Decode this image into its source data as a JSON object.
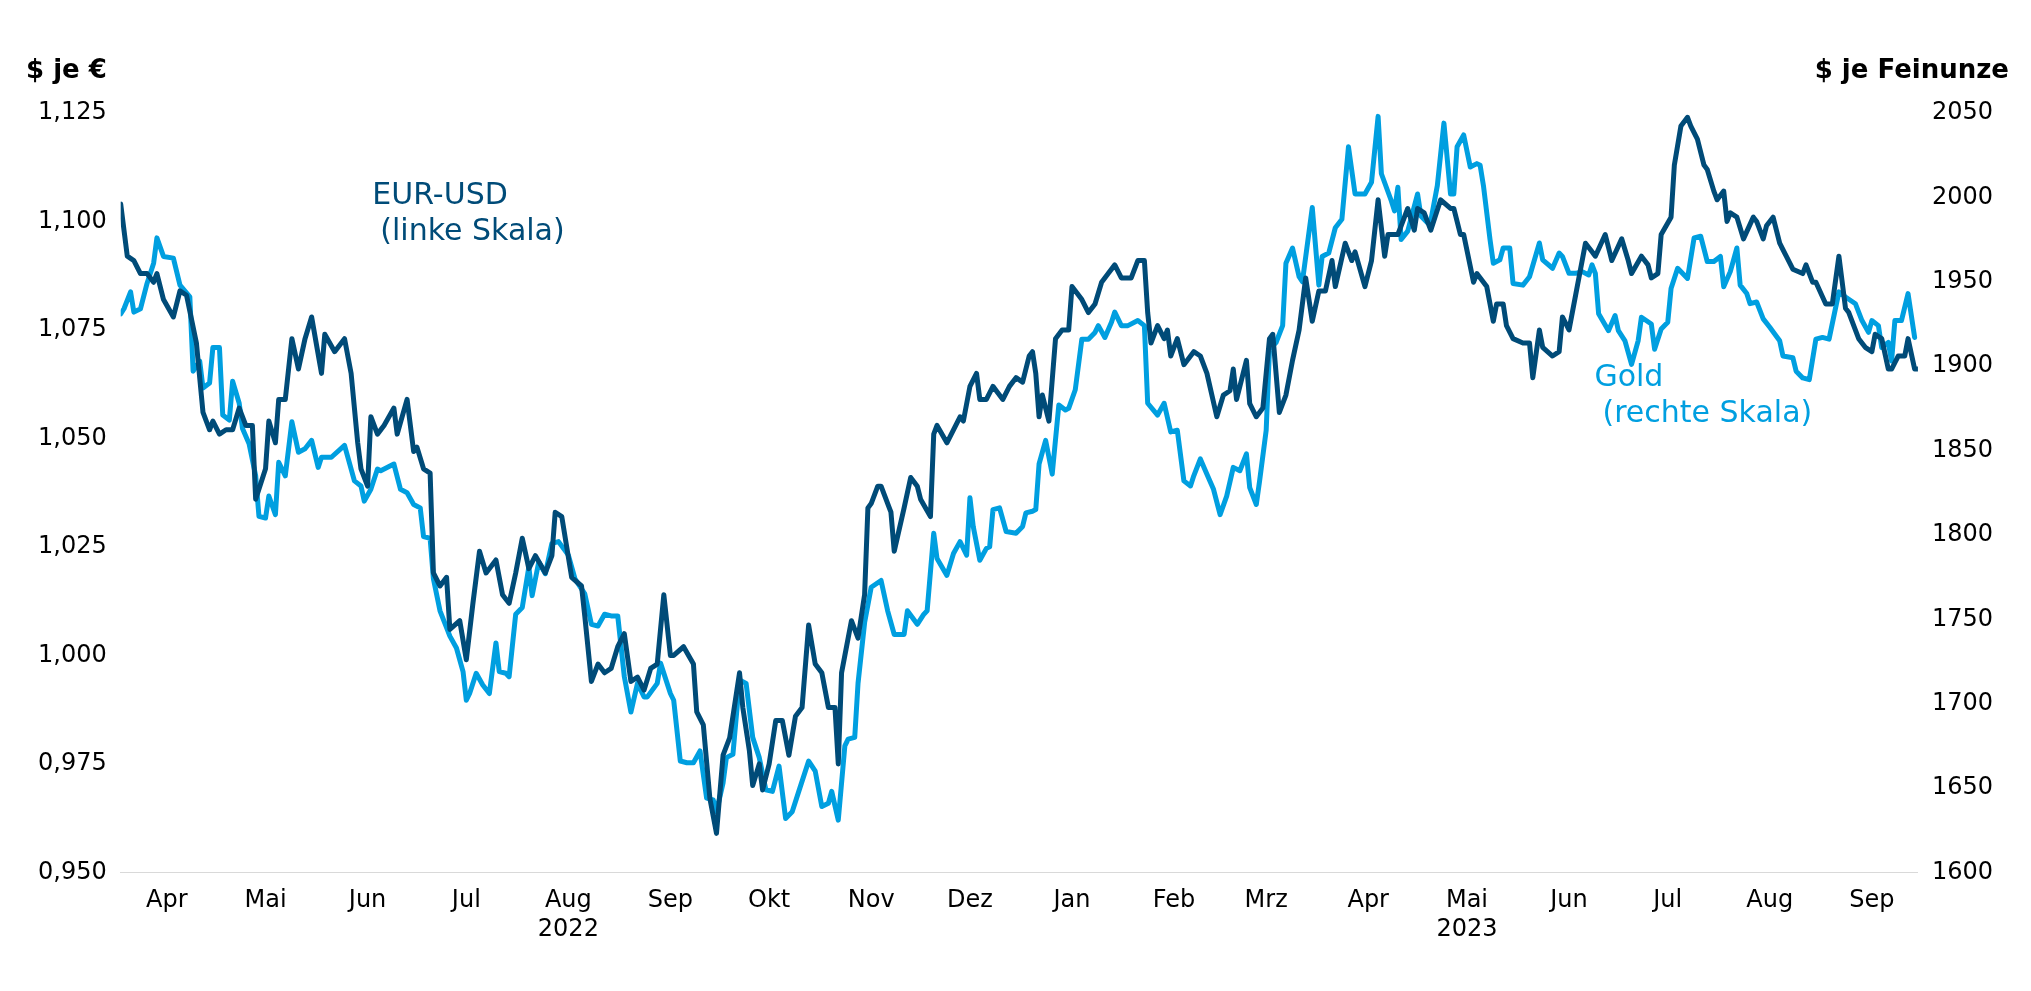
{
  "chart_data": {
    "type": "line",
    "ylabel": "$ je €",
    "y2label": "$ je Feinunze",
    "xlim": [
      "2022-04-01",
      "2023-09-29"
    ],
    "xticks": [
      {
        "value": "2022-04-15",
        "label": "Apr"
      },
      {
        "value": "2022-05-15",
        "label": "Mai"
      },
      {
        "value": "2022-06-15",
        "label": "Jun"
      },
      {
        "value": "2022-07-15",
        "label": "Jul"
      },
      {
        "value": "2022-08-15",
        "label": "Aug\n2022"
      },
      {
        "value": "2022-09-15",
        "label": "Sep"
      },
      {
        "value": "2022-10-15",
        "label": "Okt"
      },
      {
        "value": "2022-11-15",
        "label": "Nov"
      },
      {
        "value": "2022-12-15",
        "label": "Dez"
      },
      {
        "value": "2023-01-15",
        "label": "Jan"
      },
      {
        "value": "2023-02-15",
        "label": "Feb"
      },
      {
        "value": "2023-03-15",
        "label": "Mrz"
      },
      {
        "value": "2023-04-15",
        "label": "Apr"
      },
      {
        "value": "2023-05-15",
        "label": "Mai\n2023"
      },
      {
        "value": "2023-06-15",
        "label": "Jun"
      },
      {
        "value": "2023-07-15",
        "label": "Jul"
      },
      {
        "value": "2023-08-15",
        "label": "Aug"
      },
      {
        "value": "2023-09-15",
        "label": "Sep"
      }
    ],
    "ylim": [
      0.95,
      1.125
    ],
    "yticks": [
      {
        "value": 0.95,
        "label": "0,950"
      },
      {
        "value": 0.975,
        "label": "0,975"
      },
      {
        "value": 1.0,
        "label": "1,000"
      },
      {
        "value": 1.025,
        "label": "1,025"
      },
      {
        "value": 1.05,
        "label": "1,050"
      },
      {
        "value": 1.075,
        "label": "1,075"
      },
      {
        "value": 1.1,
        "label": "1,100"
      },
      {
        "value": 1.125,
        "label": "1,125"
      }
    ],
    "y2lim": [
      1600,
      2050
    ],
    "y2ticks": [
      1600,
      1650,
      1700,
      1750,
      1800,
      1850,
      1900,
      1950,
      2000,
      2050
    ],
    "series": [
      {
        "name": "EUR-USD (linke Skala)",
        "color": "#004b78",
        "axis": "y",
        "x": [
          "2022-04-01",
          "2022-04-03",
          "2022-04-05",
          "2022-04-07",
          "2022-04-09",
          "2022-04-11",
          "2022-04-12",
          "2022-04-14",
          "2022-04-17",
          "2022-04-19",
          "2022-04-21",
          "2022-04-24",
          "2022-04-26",
          "2022-04-28",
          "2022-04-29",
          "2022-05-01",
          "2022-05-03",
          "2022-05-05",
          "2022-05-07",
          "2022-05-09",
          "2022-05-11",
          "2022-05-12",
          "2022-05-15",
          "2022-05-16",
          "2022-05-18",
          "2022-05-19",
          "2022-05-21",
          "2022-05-23",
          "2022-05-25",
          "2022-05-27",
          "2022-05-29",
          "2022-06-01",
          "2022-06-02",
          "2022-06-05",
          "2022-06-08",
          "2022-06-10",
          "2022-06-12",
          "2022-06-13",
          "2022-06-15",
          "2022-06-16",
          "2022-06-18",
          "2022-06-20",
          "2022-06-23",
          "2022-06-24",
          "2022-06-27",
          "2022-06-29",
          "2022-06-30",
          "2022-07-02",
          "2022-07-04",
          "2022-07-05",
          "2022-07-07",
          "2022-07-09",
          "2022-07-10",
          "2022-07-13",
          "2022-07-15",
          "2022-07-17",
          "2022-07-19",
          "2022-07-21",
          "2022-07-24",
          "2022-07-26",
          "2022-07-28",
          "2022-07-30",
          "2022-08-01",
          "2022-08-03",
          "2022-08-05",
          "2022-08-08",
          "2022-08-10",
          "2022-08-11",
          "2022-08-13",
          "2022-08-16",
          "2022-08-19",
          "2022-08-20",
          "2022-08-22",
          "2022-08-24",
          "2022-08-26",
          "2022-08-28",
          "2022-08-30",
          "2022-09-01",
          "2022-09-03",
          "2022-09-05",
          "2022-09-07",
          "2022-09-09",
          "2022-09-11",
          "2022-09-13",
          "2022-09-15",
          "2022-09-16",
          "2022-09-19",
          "2022-09-22",
          "2022-09-23",
          "2022-09-25",
          "2022-09-27",
          "2022-09-29",
          "2022-10-01",
          "2022-10-03",
          "2022-10-06",
          "2022-10-07",
          "2022-10-09",
          "2022-10-10",
          "2022-10-12",
          "2022-10-13",
          "2022-10-15",
          "2022-10-17",
          "2022-10-19",
          "2022-10-21",
          "2022-10-23",
          "2022-10-25",
          "2022-10-27",
          "2022-10-29",
          "2022-10-31",
          "2022-11-02",
          "2022-11-04",
          "2022-11-05",
          "2022-11-06",
          "2022-11-09",
          "2022-11-11",
          "2022-11-13",
          "2022-11-14",
          "2022-11-15",
          "2022-11-17",
          "2022-11-18",
          "2022-11-21",
          "2022-11-22",
          "2022-11-25",
          "2022-11-27",
          "2022-11-29",
          "2022-11-30",
          "2022-12-03",
          "2022-12-04",
          "2022-12-05",
          "2022-12-08",
          "2022-12-10",
          "2022-12-12",
          "2022-12-13",
          "2022-12-15",
          "2022-12-17",
          "2022-12-18",
          "2022-12-20",
          "2022-12-22",
          "2022-12-23",
          "2022-12-25",
          "2022-12-27",
          "2022-12-29",
          "2022-12-31",
          "2023-01-02",
          "2023-01-03",
          "2023-01-04",
          "2023-01-05",
          "2023-01-06",
          "2023-01-08",
          "2023-01-10",
          "2023-01-12",
          "2023-01-14",
          "2023-01-15",
          "2023-01-18",
          "2023-01-20",
          "2023-01-22",
          "2023-01-24",
          "2023-01-26",
          "2023-01-28",
          "2023-01-30",
          "2023-02-01",
          "2023-02-02",
          "2023-02-04",
          "2023-02-06",
          "2023-02-07",
          "2023-02-08",
          "2023-02-10",
          "2023-02-12",
          "2023-02-13",
          "2023-02-14",
          "2023-02-16",
          "2023-02-18",
          "2023-02-21",
          "2023-02-23",
          "2023-02-25",
          "2023-02-28",
          "2023-03-02",
          "2023-03-04",
          "2023-03-05",
          "2023-03-06",
          "2023-03-09",
          "2023-03-10",
          "2023-03-12",
          "2023-03-14",
          "2023-03-16",
          "2023-03-17",
          "2023-03-19",
          "2023-03-21",
          "2023-03-23",
          "2023-03-25",
          "2023-03-27",
          "2023-03-29",
          "2023-03-31",
          "2023-04-02",
          "2023-04-04",
          "2023-04-05",
          "2023-04-08",
          "2023-04-10",
          "2023-04-11",
          "2023-04-14",
          "2023-04-16",
          "2023-04-18",
          "2023-04-20",
          "2023-04-21",
          "2023-04-24",
          "2023-04-25",
          "2023-04-27",
          "2023-04-29",
          "2023-04-30",
          "2023-05-02",
          "2023-05-04",
          "2023-05-07",
          "2023-05-10",
          "2023-05-11",
          "2023-05-13",
          "2023-05-14",
          "2023-05-17",
          "2023-05-18",
          "2023-05-21",
          "2023-05-23",
          "2023-05-24",
          "2023-05-26",
          "2023-05-27",
          "2023-05-29",
          "2023-06-01",
          "2023-06-03",
          "2023-06-04",
          "2023-06-06",
          "2023-06-07",
          "2023-06-10",
          "2023-06-12",
          "2023-06-13",
          "2023-06-15",
          "2023-06-17",
          "2023-06-20",
          "2023-06-22",
          "2023-06-23",
          "2023-06-26",
          "2023-06-28",
          "2023-07-01",
          "2023-07-03",
          "2023-07-04",
          "2023-07-07",
          "2023-07-09",
          "2023-07-10",
          "2023-07-12",
          "2023-07-13",
          "2023-07-16",
          "2023-07-17",
          "2023-07-19",
          "2023-07-21",
          "2023-07-22",
          "2023-07-24",
          "2023-07-26",
          "2023-07-27",
          "2023-07-29",
          "2023-07-30",
          "2023-08-01",
          "2023-08-02",
          "2023-08-03",
          "2023-08-05",
          "2023-08-07",
          "2023-08-10",
          "2023-08-11",
          "2023-08-13",
          "2023-08-14",
          "2023-08-16",
          "2023-08-18",
          "2023-08-20",
          "2023-08-22",
          "2023-08-25",
          "2023-08-26",
          "2023-08-28",
          "2023-08-29",
          "2023-09-01",
          "2023-09-03",
          "2023-09-05",
          "2023-09-07",
          "2023-09-08",
          "2023-09-11",
          "2023-09-13",
          "2023-09-15",
          "2023-09-16",
          "2023-09-18",
          "2023-09-20",
          "2023-09-21",
          "2023-09-23",
          "2023-09-25",
          "2023-09-26",
          "2023-09-28",
          "2023-09-29"
        ],
        "values": [
          1.104,
          1.092,
          1.091,
          1.088,
          1.088,
          1.086,
          1.088,
          1.082,
          1.078,
          1.084,
          1.083,
          1.072,
          1.056,
          1.052,
          1.054,
          1.051,
          1.052,
          1.052,
          1.057,
          1.053,
          1.053,
          1.036,
          1.043,
          1.054,
          1.049,
          1.059,
          1.059,
          1.073,
          1.066,
          1.073,
          1.078,
          1.065,
          1.074,
          1.07,
          1.073,
          1.065,
          1.049,
          1.043,
          1.039,
          1.055,
          1.051,
          1.053,
          1.057,
          1.051,
          1.059,
          1.047,
          1.048,
          1.043,
          1.042,
          1.019,
          1.016,
          1.018,
          1.006,
          1.008,
          0.999,
          1.012,
          1.024,
          1.019,
          1.022,
          1.014,
          1.012,
          1.019,
          1.027,
          1.02,
          1.023,
          1.019,
          1.023,
          1.033,
          1.032,
          1.018,
          1.016,
          1.009,
          0.994,
          0.998,
          0.996,
          0.997,
          1.002,
          1.005,
          0.994,
          0.995,
          0.992,
          0.997,
          0.998,
          1.014,
          1.0,
          1.0,
          1.002,
          0.998,
          0.987,
          0.984,
          0.967,
          0.959,
          0.977,
          0.981,
          0.996,
          0.988,
          0.978,
          0.97,
          0.975,
          0.969,
          0.975,
          0.985,
          0.985,
          0.977,
          0.986,
          0.988,
          1.007,
          0.998,
          0.996,
          0.988,
          0.988,
          0.975,
          0.996,
          1.008,
          1.004,
          1.014,
          1.034,
          1.035,
          1.039,
          1.039,
          1.033,
          1.024,
          1.034,
          1.041,
          1.039,
          1.036,
          1.032,
          1.051,
          1.053,
          1.049,
          1.052,
          1.055,
          1.054,
          1.062,
          1.065,
          1.059,
          1.059,
          1.062,
          1.061,
          1.059,
          1.062,
          1.064,
          1.063,
          1.069,
          1.07,
          1.065,
          1.055,
          1.06,
          1.054,
          1.073,
          1.075,
          1.075,
          1.085,
          1.082,
          1.079,
          1.081,
          1.086,
          1.088,
          1.09,
          1.087,
          1.087,
          1.087,
          1.091,
          1.091,
          1.079,
          1.072,
          1.076,
          1.073,
          1.075,
          1.069,
          1.073,
          1.067,
          1.07,
          1.069,
          1.065,
          1.055,
          1.06,
          1.061,
          1.066,
          1.059,
          1.068,
          1.058,
          1.055,
          1.057,
          1.073,
          1.074,
          1.056,
          1.06,
          1.068,
          1.075,
          1.087,
          1.077,
          1.084,
          1.084,
          1.091,
          1.085,
          1.095,
          1.091,
          1.093,
          1.085,
          1.091,
          1.105,
          1.092,
          1.097,
          1.097,
          1.099,
          1.103,
          1.098,
          1.103,
          1.102,
          1.098,
          1.105,
          1.103,
          1.103,
          1.097,
          1.097,
          1.086,
          1.088,
          1.085,
          1.077,
          1.081,
          1.081,
          1.076,
          1.073,
          1.072,
          1.072,
          1.064,
          1.075,
          1.071,
          1.069,
          1.07,
          1.078,
          1.075,
          1.083,
          1.095,
          1.093,
          1.092,
          1.097,
          1.091,
          1.096,
          1.091,
          1.088,
          1.092,
          1.09,
          1.087,
          1.088,
          1.097,
          1.101,
          1.113,
          1.122,
          1.124,
          1.122,
          1.119,
          1.113,
          1.112,
          1.107,
          1.105,
          1.107,
          1.1,
          1.102,
          1.101,
          1.096,
          1.101,
          1.1,
          1.096,
          1.099,
          1.101,
          1.095,
          1.092,
          1.089,
          1.088,
          1.09,
          1.086,
          1.086,
          1.081,
          1.081,
          1.092,
          1.08,
          1.079,
          1.073,
          1.071,
          1.07,
          1.074,
          1.073,
          1.066,
          1.066,
          1.069,
          1.069,
          1.073,
          1.066,
          1.066
        ]
      },
      {
        "name": "Gold (rechte Skala)",
        "color": "#009fe0",
        "axis": "y2",
        "x": [
          "2022-04-01",
          "2022-04-02",
          "2022-04-04",
          "2022-04-05",
          "2022-04-07",
          "2022-04-09",
          "2022-04-11",
          "2022-04-12",
          "2022-04-14",
          "2022-04-17",
          "2022-04-19",
          "2022-04-22",
          "2022-04-23",
          "2022-04-25",
          "2022-04-26",
          "2022-04-28",
          "2022-04-29",
          "2022-05-01",
          "2022-05-02",
          "2022-05-04",
          "2022-05-05",
          "2022-05-07",
          "2022-05-08",
          "2022-05-10",
          "2022-05-12",
          "2022-05-13",
          "2022-05-15",
          "2022-05-16",
          "2022-05-18",
          "2022-05-19",
          "2022-05-21",
          "2022-05-23",
          "2022-05-25",
          "2022-05-27",
          "2022-05-29",
          "2022-05-31",
          "2022-06-01",
          "2022-06-04",
          "2022-06-08",
          "2022-06-11",
          "2022-06-13",
          "2022-06-14",
          "2022-06-16",
          "2022-06-18",
          "2022-06-19",
          "2022-06-23",
          "2022-06-25",
          "2022-06-27",
          "2022-06-29",
          "2022-07-01",
          "2022-07-02",
          "2022-07-04",
          "2022-07-05",
          "2022-07-07",
          "2022-07-09",
          "2022-07-10",
          "2022-07-12",
          "2022-07-14",
          "2022-07-15",
          "2022-07-16",
          "2022-07-18",
          "2022-07-20",
          "2022-07-22",
          "2022-07-24",
          "2022-07-25",
          "2022-07-27",
          "2022-07-28",
          "2022-07-30",
          "2022-08-01",
          "2022-08-03",
          "2022-08-04",
          "2022-08-06",
          "2022-08-08",
          "2022-08-10",
          "2022-08-12",
          "2022-08-15",
          "2022-08-17",
          "2022-08-20",
          "2022-08-22",
          "2022-08-24",
          "2022-08-26",
          "2022-08-28",
          "2022-08-30",
          "2022-09-01",
          "2022-09-03",
          "2022-09-05",
          "2022-09-07",
          "2022-09-08",
          "2022-09-11",
          "2022-09-12",
          "2022-09-15",
          "2022-09-16",
          "2022-09-18",
          "2022-09-20",
          "2022-09-22",
          "2022-09-24",
          "2022-09-26",
          "2022-09-28",
          "2022-09-29",
          "2022-10-01",
          "2022-10-02",
          "2022-10-04",
          "2022-10-06",
          "2022-10-08",
          "2022-10-10",
          "2022-10-12",
          "2022-10-14",
          "2022-10-16",
          "2022-10-18",
          "2022-10-20",
          "2022-10-22",
          "2022-10-24",
          "2022-10-27",
          "2022-10-29",
          "2022-10-31",
          "2022-11-02",
          "2022-11-03",
          "2022-11-05",
          "2022-11-07",
          "2022-11-08",
          "2022-11-10",
          "2022-11-11",
          "2022-11-13",
          "2022-11-15",
          "2022-11-18",
          "2022-11-20",
          "2022-11-22",
          "2022-11-25",
          "2022-11-26",
          "2022-11-29",
          "2022-12-01",
          "2022-12-02",
          "2022-12-04",
          "2022-12-05",
          "2022-12-08",
          "2022-12-10",
          "2022-12-12",
          "2022-12-14",
          "2022-12-15",
          "2022-12-16",
          "2022-12-18",
          "2022-12-20",
          "2022-12-21",
          "2022-12-22",
          "2022-12-24",
          "2022-12-26",
          "2022-12-29",
          "2022-12-31",
          "2023-01-01",
          "2023-01-03",
          "2023-01-04",
          "2023-01-05",
          "2023-01-07",
          "2023-01-09",
          "2023-01-11",
          "2023-01-13",
          "2023-01-14",
          "2023-01-16",
          "2023-01-18",
          "2023-01-20",
          "2023-01-22",
          "2023-01-23",
          "2023-01-25",
          "2023-01-27",
          "2023-01-28",
          "2023-01-30",
          "2023-02-01",
          "2023-02-04",
          "2023-02-06",
          "2023-02-07",
          "2023-02-10",
          "2023-02-12",
          "2023-02-14",
          "2023-02-16",
          "2023-02-18",
          "2023-02-20",
          "2023-02-21",
          "2023-02-23",
          "2023-02-25",
          "2023-02-27",
          "2023-03-01",
          "2023-03-03",
          "2023-03-05",
          "2023-03-07",
          "2023-03-09",
          "2023-03-10",
          "2023-03-12",
          "2023-03-13",
          "2023-03-15",
          "2023-03-16",
          "2023-03-18",
          "2023-03-20",
          "2023-03-21",
          "2023-03-23",
          "2023-03-25",
          "2023-03-26",
          "2023-03-29",
          "2023-03-31",
          "2023-04-01",
          "2023-04-03",
          "2023-04-05",
          "2023-04-07",
          "2023-04-09",
          "2023-04-11",
          "2023-04-14",
          "2023-04-16",
          "2023-04-18",
          "2023-04-19",
          "2023-04-22",
          "2023-04-23",
          "2023-04-24",
          "2023-04-25",
          "2023-04-27",
          "2023-04-30",
          "2023-05-01",
          "2023-05-03",
          "2023-05-04",
          "2023-05-06",
          "2023-05-08",
          "2023-05-10",
          "2023-05-11",
          "2023-05-12",
          "2023-05-14",
          "2023-05-16",
          "2023-05-18",
          "2023-05-19",
          "2023-05-20",
          "2023-05-22",
          "2023-05-23",
          "2023-05-25",
          "2023-05-26",
          "2023-05-28",
          "2023-05-29",
          "2023-06-01",
          "2023-06-03",
          "2023-06-06",
          "2023-06-07",
          "2023-06-10",
          "2023-06-12",
          "2023-06-13",
          "2023-06-15",
          "2023-06-17",
          "2023-06-19",
          "2023-06-21",
          "2023-06-22",
          "2023-06-23",
          "2023-06-24",
          "2023-06-27",
          "2023-06-29",
          "2023-06-30",
          "2023-07-02",
          "2023-07-04",
          "2023-07-06",
          "2023-07-07",
          "2023-07-10",
          "2023-07-11",
          "2023-07-13",
          "2023-07-15",
          "2023-07-16",
          "2023-07-18",
          "2023-07-21",
          "2023-07-23",
          "2023-07-25",
          "2023-07-27",
          "2023-07-29",
          "2023-07-31",
          "2023-08-01",
          "2023-08-03",
          "2023-08-05",
          "2023-08-06",
          "2023-08-08",
          "2023-08-09",
          "2023-08-11",
          "2023-08-13",
          "2023-08-15",
          "2023-08-18",
          "2023-08-19",
          "2023-08-22",
          "2023-08-23",
          "2023-08-25",
          "2023-08-27",
          "2023-08-29",
          "2023-08-31",
          "2023-09-02",
          "2023-09-05",
          "2023-09-07",
          "2023-09-10",
          "2023-09-12",
          "2023-09-14",
          "2023-09-15",
          "2023-09-17",
          "2023-09-18",
          "2023-09-20",
          "2023-09-21",
          "2023-09-22",
          "2023-09-24",
          "2023-09-26",
          "2023-09-28"
        ],
        "values": [
          1931,
          1934,
          1944,
          1932,
          1934,
          1949,
          1961,
          1976,
          1965,
          1964,
          1948,
          1941,
          1897,
          1903,
          1887,
          1890,
          1911,
          1911,
          1871,
          1868,
          1891,
          1878,
          1863,
          1854,
          1835,
          1811,
          1810,
          1823,
          1812,
          1843,
          1835,
          1867,
          1849,
          1851,
          1856,
          1840,
          1846,
          1846,
          1853,
          1832,
          1829,
          1820,
          1827,
          1839,
          1838,
          1842,
          1827,
          1825,
          1818,
          1816,
          1799,
          1798,
          1774,
          1755,
          1745,
          1740,
          1733,
          1719,
          1702,
          1706,
          1718,
          1711,
          1706,
          1736,
          1719,
          1718,
          1716,
          1753,
          1757,
          1781,
          1764,
          1784,
          1777,
          1795,
          1796,
          1788,
          1774,
          1765,
          1747,
          1746,
          1753,
          1752,
          1752,
          1716,
          1695,
          1712,
          1704,
          1704,
          1712,
          1724,
          1706,
          1702,
          1666,
          1665,
          1665,
          1672,
          1644,
          1643,
          1636,
          1653,
          1668,
          1670,
          1714,
          1712,
          1680,
          1668,
          1649,
          1648,
          1663,
          1632,
          1636,
          1648,
          1666,
          1660,
          1639,
          1641,
          1648,
          1631,
          1675,
          1679,
          1680,
          1712,
          1748,
          1769,
          1773,
          1755,
          1741,
          1741,
          1755,
          1747,
          1753,
          1755,
          1801,
          1786,
          1776,
          1789,
          1796,
          1788,
          1822,
          1805,
          1785,
          1792,
          1793,
          1815,
          1816,
          1802,
          1801,
          1805,
          1813,
          1814,
          1815,
          1842,
          1856,
          1836,
          1877,
          1874,
          1875,
          1886,
          1916,
          1916,
          1920,
          1924,
          1917,
          1926,
          1932,
          1924,
          1924,
          1927,
          1924,
          1878,
          1871,
          1878,
          1861,
          1862,
          1832,
          1829,
          1835,
          1845,
          1836,
          1827,
          1812,
          1823,
          1840,
          1838,
          1848,
          1828,
          1818,
          1832,
          1862,
          1910,
          1914,
          1924,
          1961,
          1970,
          1953,
          1950,
          1994,
          1948,
          1965,
          1967,
          1982,
          1987,
          2030,
          2002,
          2002,
          2009,
          2048,
          2014,
          1998,
          1992,
          2006,
          1975,
          1980,
          2002,
          1989,
          1985,
          1986,
          2007,
          2044,
          2002,
          2002,
          2030,
          2037,
          2018,
          2020,
          2019,
          2007,
          1975,
          1961,
          1963,
          1970,
          1970,
          1949,
          1948,
          1953,
          1973,
          1963,
          1958,
          1967,
          1965,
          1955,
          1955,
          1956,
          1954,
          1960,
          1955,
          1931,
          1921,
          1930,
          1921,
          1915,
          1901,
          1915,
          1929,
          1925,
          1910,
          1922,
          1926,
          1946,
          1958,
          1952,
          1976,
          1977,
          1962,
          1962,
          1965,
          1947,
          1956,
          1970,
          1948,
          1943,
          1937,
          1938,
          1928,
          1923,
          1915,
          1906,
          1905,
          1897,
          1893,
          1892,
          1916,
          1917,
          1916,
          1944,
          1941,
          1937,
          1927,
          1920,
          1927,
          1924,
          1911,
          1914,
          1903,
          1927,
          1927,
          1943,
          1917
        ]
      }
    ]
  }
}
